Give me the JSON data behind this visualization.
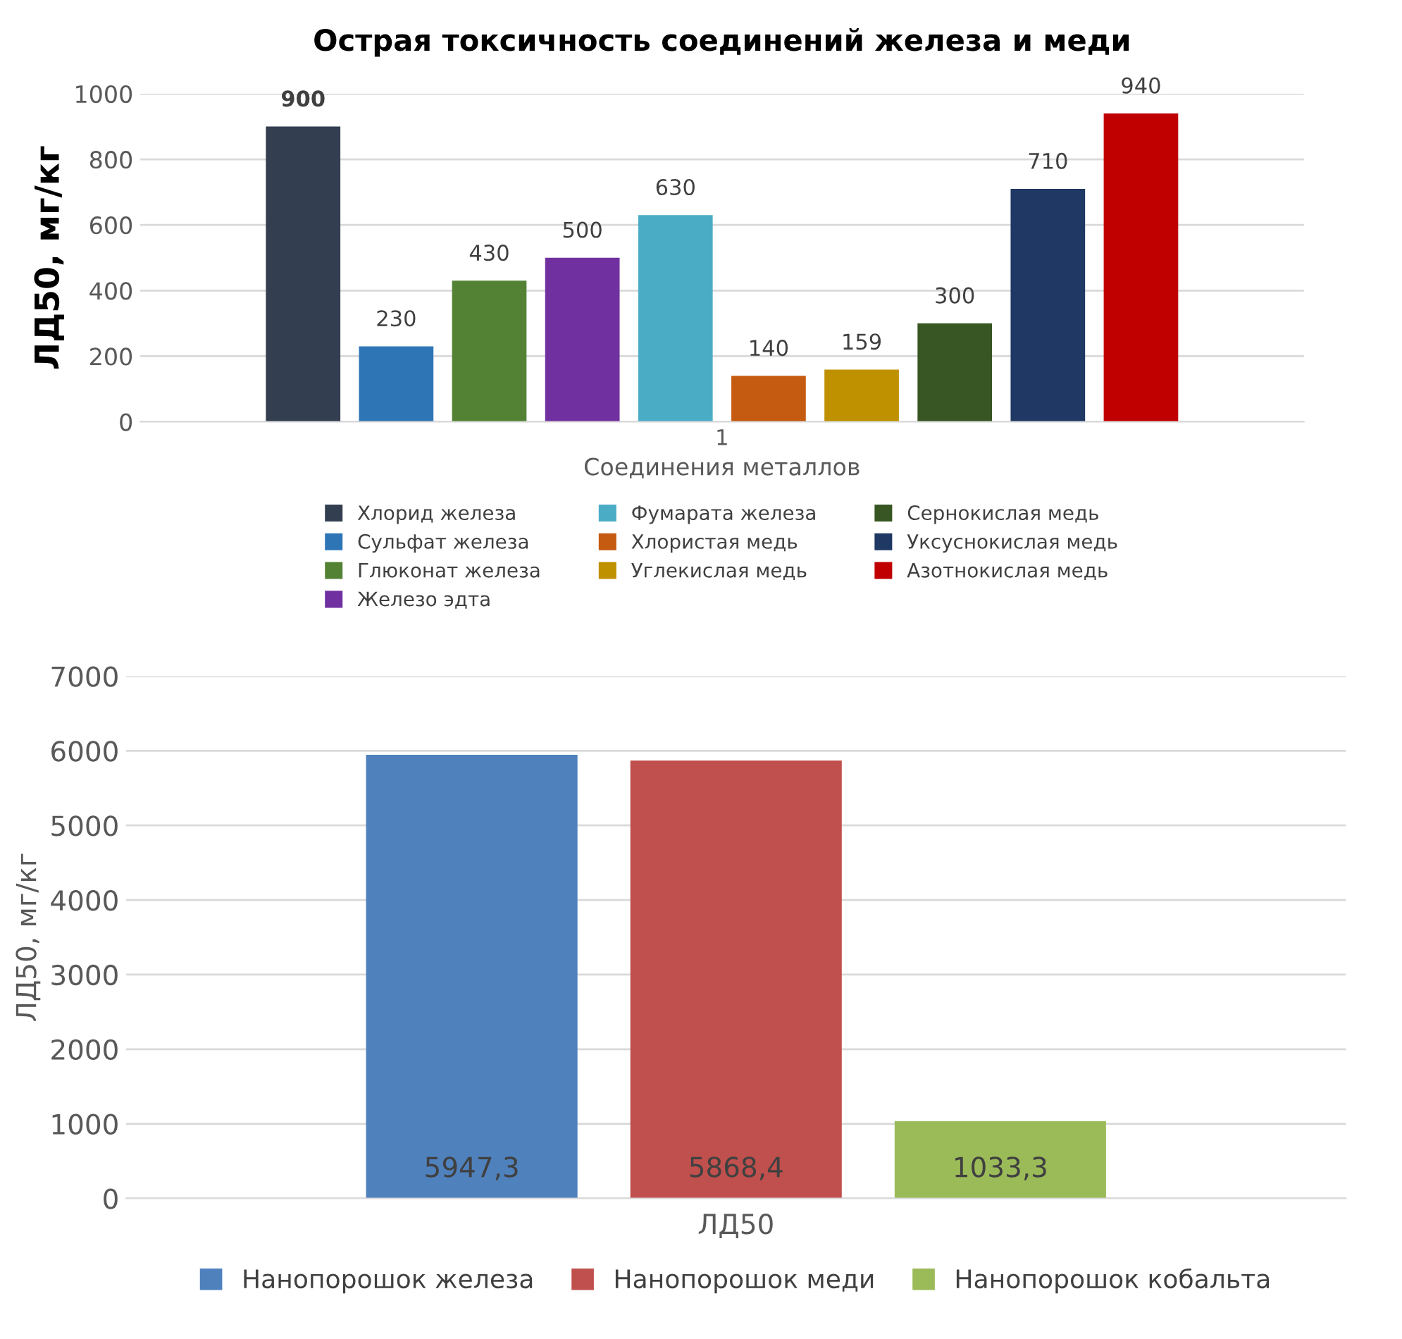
{
  "chart_data": [
    {
      "type": "bar",
      "title": "Острая токсичность соединений железа и меди",
      "xlabel": "Соединения металлов",
      "ylabel": "ЛД50, мг/кг",
      "categories": [
        "1"
      ],
      "series": [
        {
          "name": "Хлорид железа",
          "color": "#333f50",
          "values": [
            900
          ]
        },
        {
          "name": "Сульфат железа",
          "color": "#2e75b6",
          "values": [
            230
          ]
        },
        {
          "name": "Глюконат железа",
          "color": "#548235",
          "values": [
            430
          ]
        },
        {
          "name": "Железо эдта",
          "color": "#7030a0",
          "values": [
            500
          ]
        },
        {
          "name": "Фумарата железа",
          "color": "#4bacc6",
          "values": [
            630
          ]
        },
        {
          "name": "Хлористая медь",
          "color": "#c55a11",
          "values": [
            140
          ]
        },
        {
          "name": "Углекислая медь",
          "color": "#bf9000",
          "values": [
            159
          ]
        },
        {
          "name": "Сернокислая медь",
          "color": "#375623",
          "values": [
            300
          ]
        },
        {
          "name": "Уксуснокислая медь",
          "color": "#1f3864",
          "values": [
            710
          ]
        },
        {
          "name": "Азотнокислая медь",
          "color": "#c00000",
          "values": [
            940
          ]
        }
      ],
      "ylim": [
        0,
        1000
      ],
      "yticks": [
        0,
        200,
        400,
        600,
        800,
        1000
      ],
      "grid": "y",
      "legend": "bottom",
      "data_labels": true
    },
    {
      "type": "bar",
      "xlabel": "ЛД50",
      "ylabel": "ЛД50, мг/кг",
      "categories": [
        null
      ],
      "series": [
        {
          "name": "Нанопорошок железа",
          "color": "#4f81bd",
          "values": [
            5947.3
          ],
          "value_labels": [
            "5947,3"
          ]
        },
        {
          "name": "Нанопорошок меди",
          "color": "#c0504d",
          "values": [
            5868.4
          ],
          "value_labels": [
            "5868,4"
          ]
        },
        {
          "name": "Нанопорошок кобальта",
          "color": "#9bbb59",
          "values": [
            1033.3
          ],
          "value_labels": [
            "1033,3"
          ]
        }
      ],
      "ylim": [
        0,
        7000
      ],
      "yticks": [
        0,
        1000,
        2000,
        3000,
        4000,
        5000,
        6000,
        7000
      ],
      "grid": "y",
      "legend": "bottom"
    }
  ]
}
